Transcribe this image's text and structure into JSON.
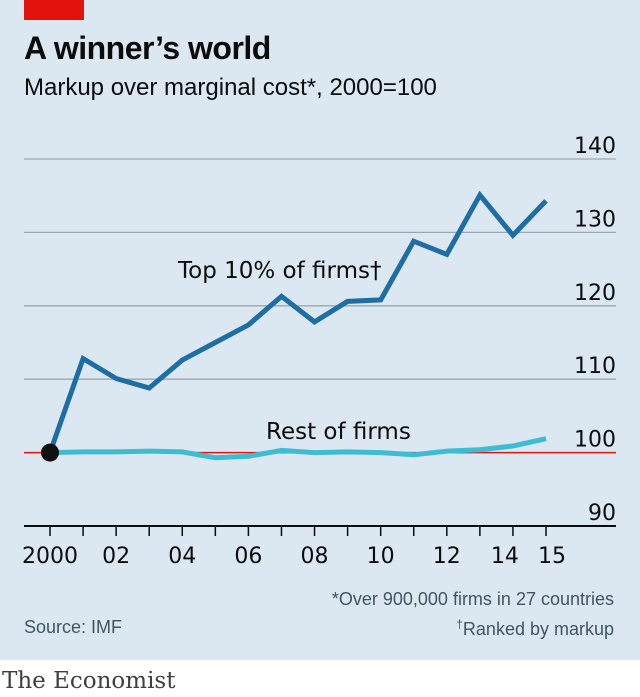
{
  "title": "A winner’s world",
  "subtitle": "Markup over marginal cost*, 2000=100",
  "source": "Source: IMF",
  "footnotes": {
    "asterisk": "*Over 900,000 firms in 27 countries",
    "dagger_mark": "†",
    "dagger_text": "Ranked by markup"
  },
  "brand": "The Economist",
  "colors": {
    "background": "#dbe8f1",
    "top_series": "#1f6ea3",
    "rest_series": "#3ebcd2",
    "baseline": "#e3120b",
    "accent": "#e3120b"
  },
  "chart_data": {
    "type": "line",
    "x": [
      2000,
      2001,
      2002,
      2003,
      2004,
      2005,
      2006,
      2007,
      2008,
      2009,
      2010,
      2011,
      2012,
      2013,
      2014,
      2015
    ],
    "x_tick_labels": [
      "2000",
      "02",
      "04",
      "06",
      "08",
      "10",
      "12",
      "14",
      "15"
    ],
    "x_tick_values": [
      2000,
      2002,
      2004,
      2006,
      2008,
      2010,
      2012,
      2014,
      2015
    ],
    "y_tick_labels": [
      "90",
      "100",
      "110",
      "120",
      "130",
      "140"
    ],
    "y_tick_values": [
      90,
      100,
      110,
      120,
      130,
      140
    ],
    "ylim": [
      90,
      140
    ],
    "xlim": [
      2000,
      2015
    ],
    "baseline": 100,
    "grid": true,
    "series": [
      {
        "name": "Top 10% of firms†",
        "values": [
          100,
          112.8,
          110.1,
          108.8,
          112.6,
          115.0,
          117.4,
          121.3,
          117.8,
          120.6,
          120.8,
          128.8,
          127.0,
          135.1,
          129.6,
          134.3
        ]
      },
      {
        "name": "Rest of firms",
        "values": [
          100,
          100.1,
          100.1,
          100.2,
          100.1,
          99.3,
          99.5,
          100.3,
          100.0,
          100.1,
          100.0,
          99.7,
          100.2,
          100.4,
          100.9,
          101.9
        ]
      }
    ]
  }
}
